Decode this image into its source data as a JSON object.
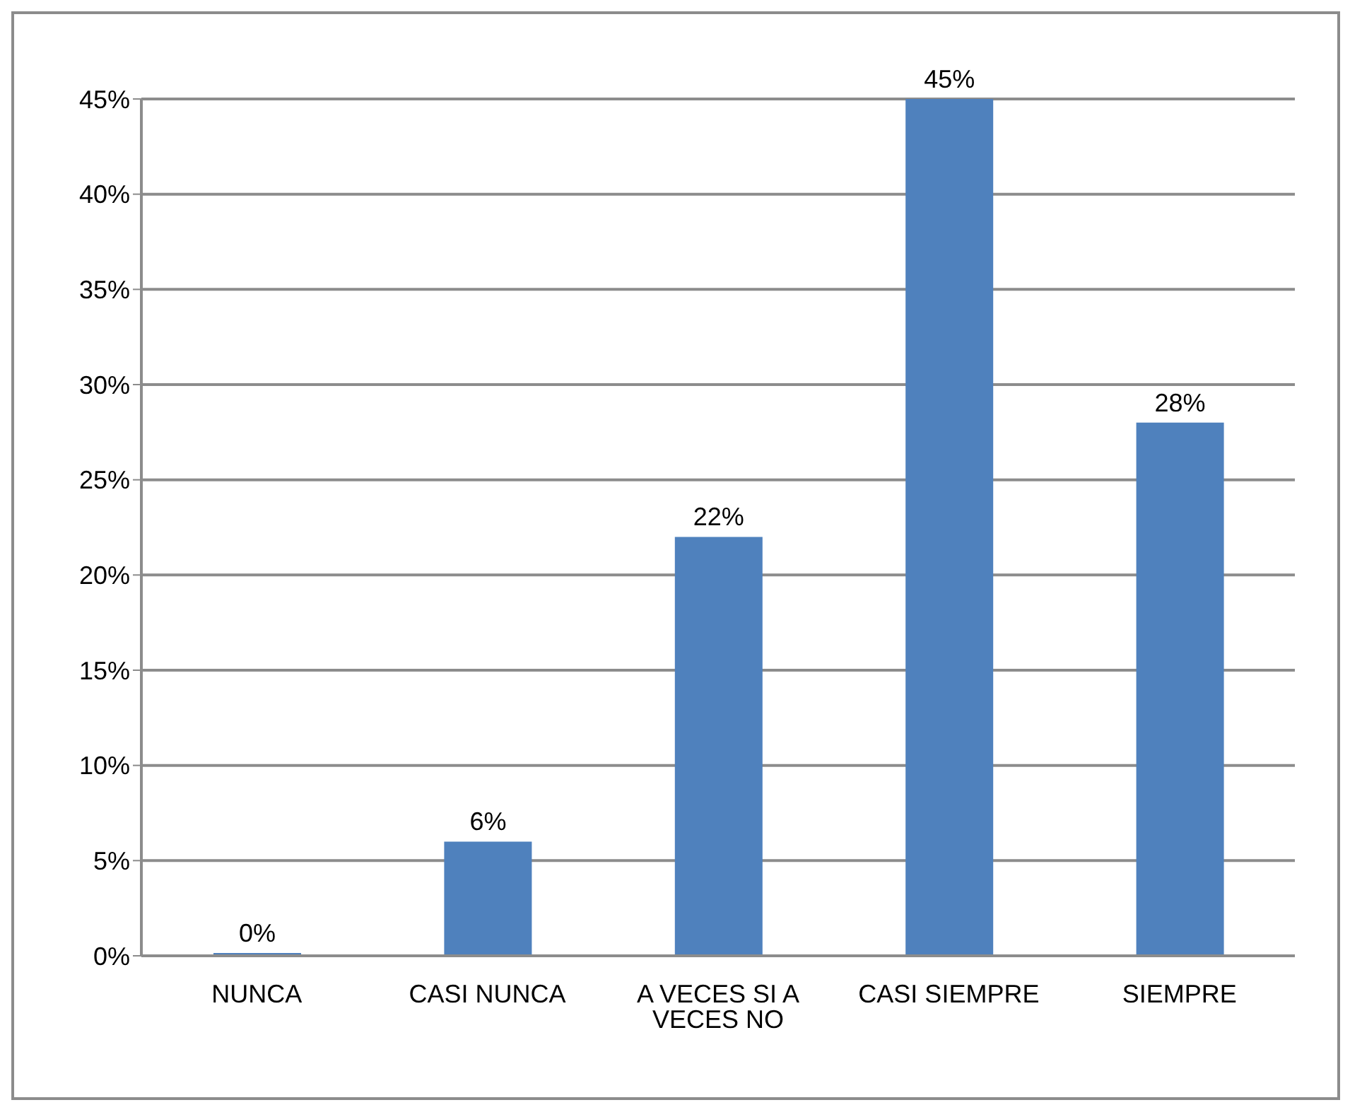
{
  "chart_data": {
    "type": "bar",
    "categories": [
      "NUNCA",
      "CASI NUNCA",
      "A VECES SI A VECES NO",
      "CASI SIEMPRE",
      "SIEMPRE"
    ],
    "values": [
      0,
      6,
      22,
      45,
      28
    ],
    "value_labels": [
      "0%",
      "6%",
      "22%",
      "45%",
      "28%"
    ],
    "color": "#4f81bd",
    "ylim": [
      0,
      45
    ],
    "yticks": [
      {
        "value": 0,
        "label": "0%"
      },
      {
        "value": 5,
        "label": "5%"
      },
      {
        "value": 10,
        "label": "10%"
      },
      {
        "value": 15,
        "label": "15%"
      },
      {
        "value": 20,
        "label": "20%"
      },
      {
        "value": 25,
        "label": "25%"
      },
      {
        "value": 30,
        "label": "30%"
      },
      {
        "value": 35,
        "label": "35%"
      },
      {
        "value": 40,
        "label": "40%"
      },
      {
        "value": 45,
        "label": "45%"
      }
    ],
    "grid": "y"
  }
}
